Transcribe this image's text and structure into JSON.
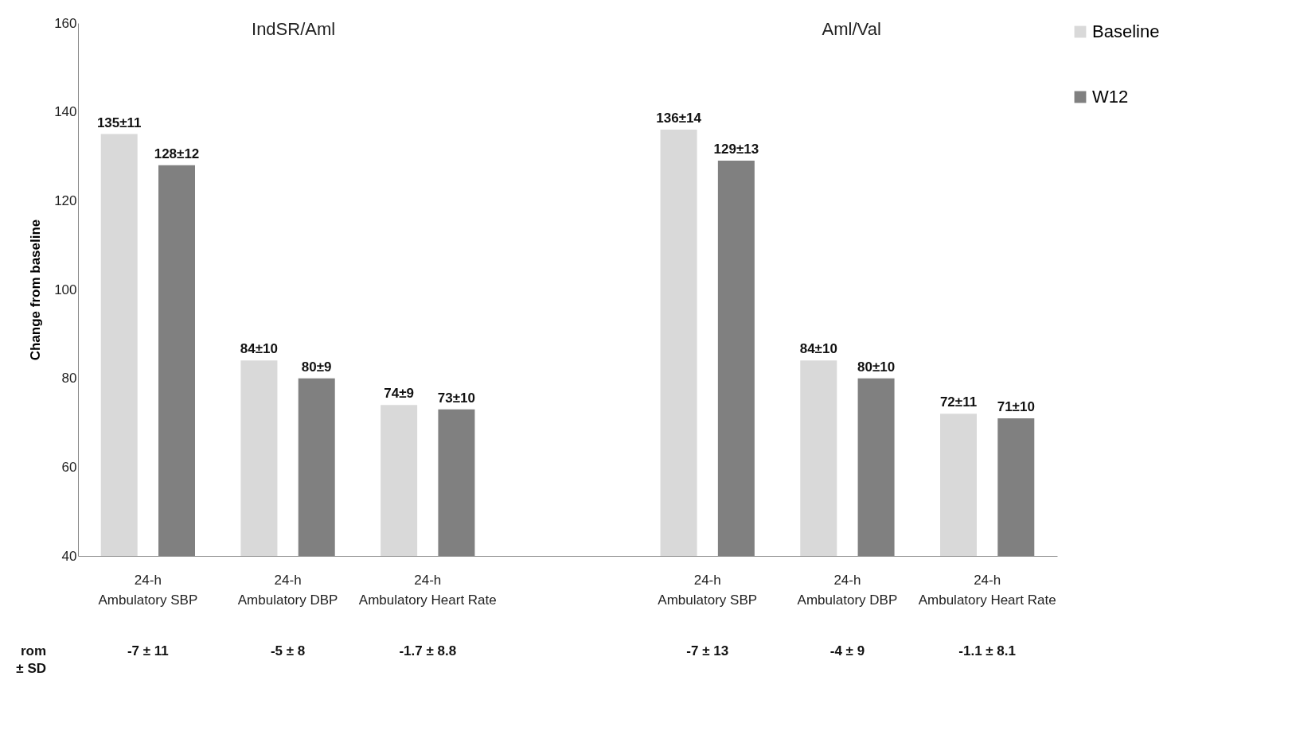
{
  "chart_data": {
    "type": "bar",
    "categories": [
      "24-h Ambulatory SBP",
      "24-h Ambulatory DBP",
      "24-h Ambulatory Heart Rate",
      null,
      "24-h Ambulatory SBP",
      "24-h Ambulatory DBP",
      "24-h Ambulatory Heart Rate"
    ],
    "series": [
      {
        "name": "Baseline",
        "color": "#d9d9d9",
        "values": [
          135,
          84,
          74,
          null,
          136,
          84,
          72
        ],
        "value_labels": [
          "135±11",
          "84±10",
          "74±9",
          null,
          "136±14",
          "84±10",
          "72±11"
        ]
      },
      {
        "name": "W12",
        "color": "#808080",
        "values": [
          128,
          80,
          73,
          null,
          129,
          80,
          71
        ],
        "value_labels": [
          "128±12",
          "80±9",
          "73±10",
          null,
          "129±13",
          "80±10",
          "71±10"
        ]
      }
    ],
    "ylabel": "Change  from baseline",
    "ylim": [
      40,
      160
    ],
    "yticks": [
      40,
      60,
      80,
      100,
      120,
      140,
      160
    ],
    "grid": false,
    "legend": "right",
    "annotations": [
      "IndSR/Aml",
      "Aml/Val",
      "rom ± SD",
      "-7 ± 11",
      "-5 ± 8",
      "-1.7 ± 8.8",
      "-7 ± 13",
      "-4 ± 9",
      "-1.1 ± 8.1"
    ]
  }
}
